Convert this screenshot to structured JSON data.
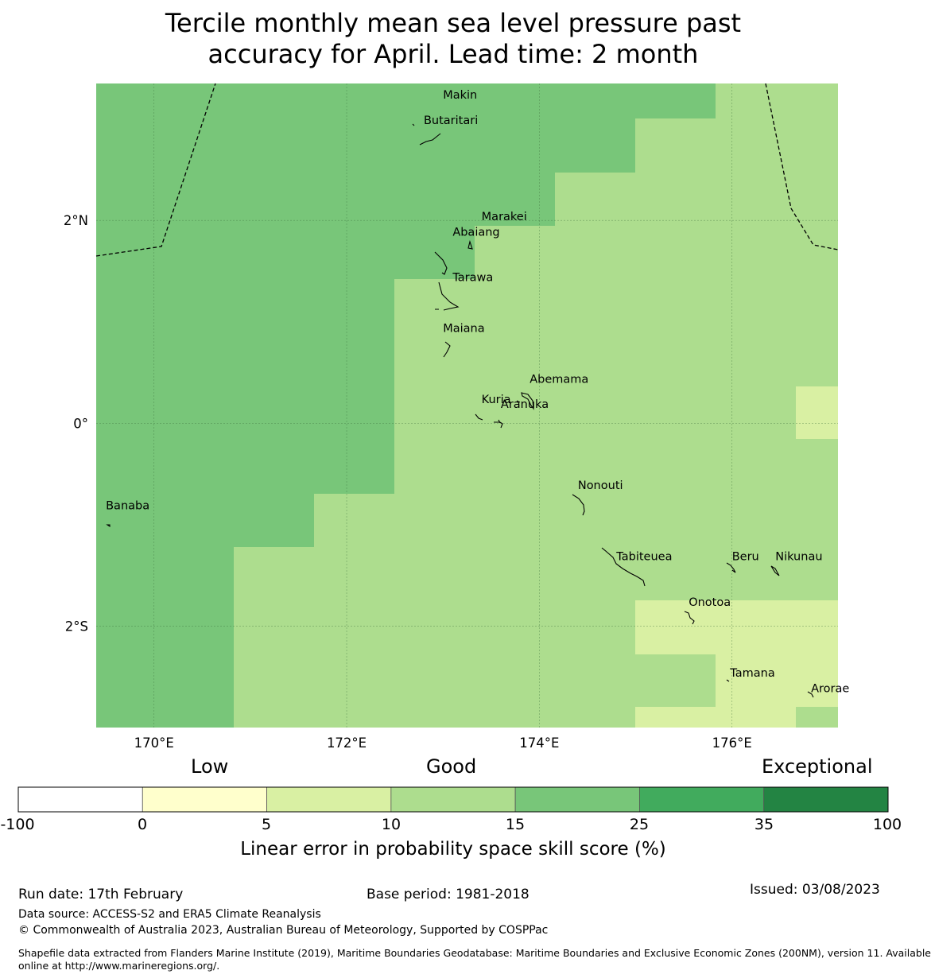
{
  "title": {
    "line1": "Tercile monthly mean sea level pressure past",
    "line2": "accuracy for April. Lead time: 2 month"
  },
  "map": {
    "lon_range": [
      169.4,
      177.1
    ],
    "lat_range": [
      -3.0,
      3.35
    ],
    "lon_ticks": [
      {
        "value": 170,
        "label": "170°E"
      },
      {
        "value": 172,
        "label": "172°E"
      },
      {
        "value": 174,
        "label": "174°E"
      },
      {
        "value": 176,
        "label": "176°E"
      }
    ],
    "lat_ticks": [
      {
        "value": 2,
        "label": "2°N"
      },
      {
        "value": 0,
        "label": "0°"
      },
      {
        "value": -2,
        "label": "2°S"
      }
    ],
    "skill_colors": {
      "15-25": "#78c679",
      "10-15": "#addd8e",
      "5-10": "#d9f0a3"
    },
    "places": [
      {
        "name": "Makin",
        "lon": 173.0,
        "lat": 3.2
      },
      {
        "name": "Butaritari",
        "lon": 172.8,
        "lat": 2.95
      },
      {
        "name": "Marakei",
        "lon": 173.4,
        "lat": 2.0
      },
      {
        "name": "Abaiang",
        "lon": 173.1,
        "lat": 1.85
      },
      {
        "name": "Tarawa",
        "lon": 173.1,
        "lat": 1.4
      },
      {
        "name": "Maiana",
        "lon": 173.0,
        "lat": 0.9
      },
      {
        "name": "Abemama",
        "lon": 173.9,
        "lat": 0.4
      },
      {
        "name": "Kuria",
        "lon": 173.4,
        "lat": 0.2
      },
      {
        "name": "Aranuka",
        "lon": 173.6,
        "lat": 0.15
      },
      {
        "name": "Nonouti",
        "lon": 174.4,
        "lat": -0.65
      },
      {
        "name": "Banaba",
        "lon": 169.5,
        "lat": -0.85
      },
      {
        "name": "Tabiteuea",
        "lon": 174.8,
        "lat": -1.35
      },
      {
        "name": "Beru",
        "lon": 176.0,
        "lat": -1.35
      },
      {
        "name": "Nikunau",
        "lon": 176.45,
        "lat": -1.35
      },
      {
        "name": "Onotoa",
        "lon": 175.55,
        "lat": -1.8
      },
      {
        "name": "Tamana",
        "lon": 175.98,
        "lat": -2.5
      },
      {
        "name": "Arorae",
        "lon": 176.82,
        "lat": -2.65
      }
    ]
  },
  "colorbar": {
    "categories": [
      "Low",
      "Good",
      "Exceptional"
    ],
    "bins": [
      {
        "from": -100,
        "to": 0,
        "color": "#ffffff"
      },
      {
        "from": 0,
        "to": 5,
        "color": "#ffffcc"
      },
      {
        "from": 5,
        "to": 10,
        "color": "#d9f0a3"
      },
      {
        "from": 10,
        "to": 15,
        "color": "#addd8e"
      },
      {
        "from": 15,
        "to": 25,
        "color": "#78c679"
      },
      {
        "from": 25,
        "to": 35,
        "color": "#41ab5d"
      },
      {
        "from": 35,
        "to": 100,
        "color": "#238443"
      }
    ],
    "tick_labels": [
      "-100",
      "0",
      "5",
      "10",
      "15",
      "25",
      "35",
      "100"
    ],
    "label": "Linear error in probability space skill score (%)"
  },
  "footer": {
    "run_date": "Run date: 17th February",
    "base_period": "Base period: 1981-2018",
    "issued": "Issued: 03/08/2023",
    "data_source": "Data source: ACCESS-S2 and ERA5 Climate Reanalysis",
    "copyright": "© Commonwealth of Australia 2023, Australian Bureau of Meteorology, Supported by COSPPac",
    "shapefile_line1": "Shapefile data extracted from Flanders Marine Institute (2019), Maritime Boundaries Geodatabase: Maritime Boundaries and Exclusive Economic Zones (200NM), version 11. Available",
    "shapefile_line2": "online at http://www.marineregions.org/."
  }
}
